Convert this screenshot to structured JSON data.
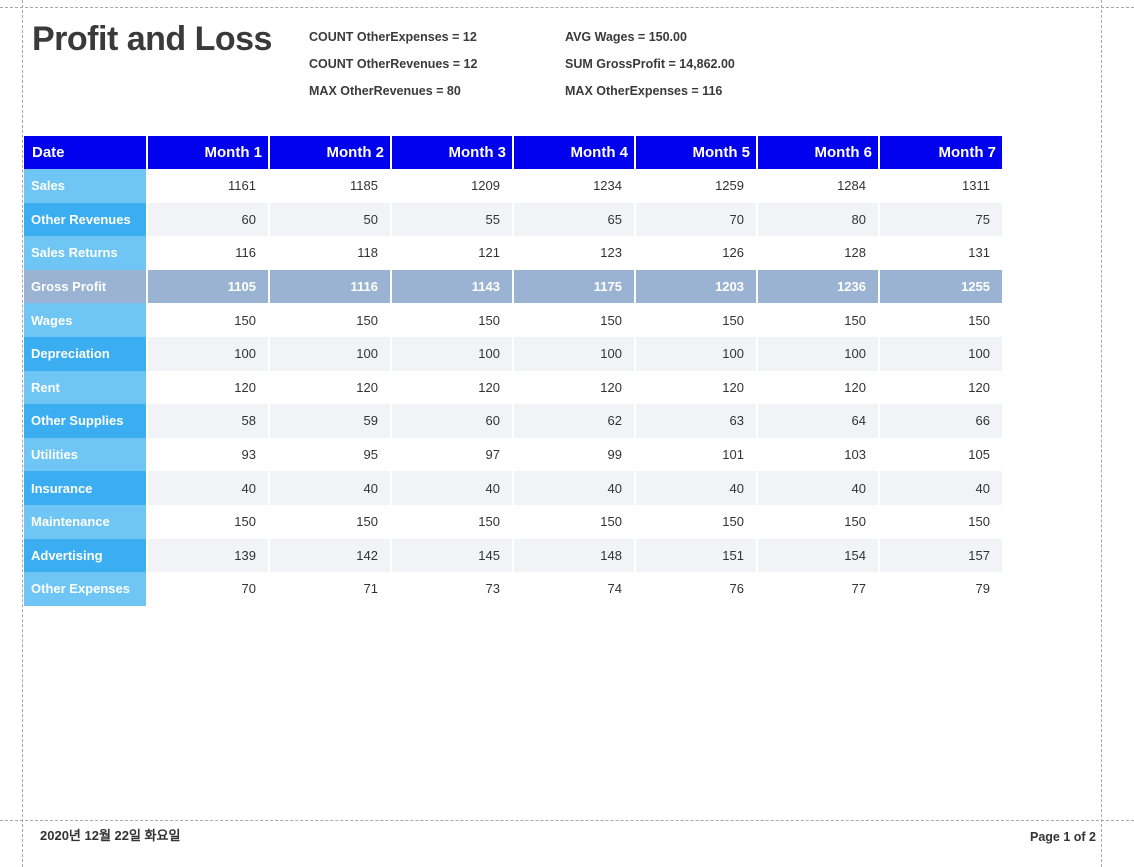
{
  "report": {
    "title": "Profit and Loss",
    "summary": {
      "col1": [
        "COUNT OtherExpenses = 12",
        "COUNT OtherRevenues = 12",
        "MAX OtherRevenues = 80"
      ],
      "col2": [
        "AVG Wages = 150.00",
        "SUM GrossProfit = 14,862.00",
        "MAX OtherExpenses = 116"
      ]
    },
    "table": {
      "header": [
        "Date",
        "Month 1",
        "Month 2",
        "Month 3",
        "Month 4",
        "Month 5",
        "Month 6",
        "Month 7"
      ],
      "rows": [
        {
          "label": "Sales",
          "values": [
            "1161",
            "1185",
            "1209",
            "1234",
            "1259",
            "1284",
            "1311"
          ]
        },
        {
          "label": "Other Revenues",
          "values": [
            "60",
            "50",
            "55",
            "65",
            "70",
            "80",
            "75"
          ]
        },
        {
          "label": "Sales Returns",
          "values": [
            "116",
            "118",
            "121",
            "123",
            "126",
            "128",
            "131"
          ]
        },
        {
          "label": "Gross Profit",
          "values": [
            "1105",
            "1116",
            "1143",
            "1175",
            "1203",
            "1236",
            "1255"
          ]
        },
        {
          "label": "Wages",
          "values": [
            "150",
            "150",
            "150",
            "150",
            "150",
            "150",
            "150"
          ]
        },
        {
          "label": "Depreciation",
          "values": [
            "100",
            "100",
            "100",
            "100",
            "100",
            "100",
            "100"
          ]
        },
        {
          "label": "Rent",
          "values": [
            "120",
            "120",
            "120",
            "120",
            "120",
            "120",
            "120"
          ]
        },
        {
          "label": "Other Supplies",
          "values": [
            "58",
            "59",
            "60",
            "62",
            "63",
            "64",
            "66"
          ]
        },
        {
          "label": "Utilities",
          "values": [
            "93",
            "95",
            "97",
            "99",
            "101",
            "103",
            "105"
          ]
        },
        {
          "label": "Insurance",
          "values": [
            "40",
            "40",
            "40",
            "40",
            "40",
            "40",
            "40"
          ]
        },
        {
          "label": "Maintenance",
          "values": [
            "150",
            "150",
            "150",
            "150",
            "150",
            "150",
            "150"
          ]
        },
        {
          "label": "Advertising",
          "values": [
            "139",
            "142",
            "145",
            "148",
            "151",
            "154",
            "157"
          ]
        },
        {
          "label": "Other Expenses",
          "values": [
            "70",
            "71",
            "73",
            "74",
            "76",
            "77",
            "79"
          ]
        }
      ]
    },
    "footer": {
      "date": "2020년 12월 22일 화요일",
      "page": "Page 1 of 2"
    }
  },
  "colors": {
    "header_bg": "#0000ee",
    "label_light": "#6fc6f4",
    "label_dark": "#3aaef0",
    "gross_profit_bg": "#9ab3d2",
    "row_alt_bg": "#f2f3f7"
  }
}
